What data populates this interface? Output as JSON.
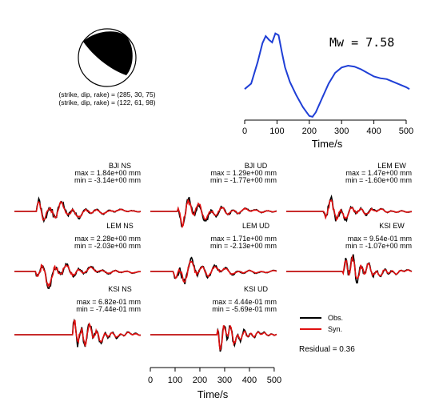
{
  "colors": {
    "obs": "#000000",
    "syn": "#e01010",
    "stf": "#1f3fd6"
  },
  "focal_mechanism": {
    "line1": "(strike, dip, rake) = (285, 30, 75)",
    "line2": "(strike, dip, rake) = (122, 61, 98)"
  },
  "stf": {
    "title": "Mw = 7.58",
    "xlabel": "Time/s",
    "ticks": [
      "0",
      "100",
      "200",
      "300",
      "400",
      "500"
    ]
  },
  "waveform_xlabel": "Time/s",
  "waveform_ticks": [
    "0",
    "100",
    "200",
    "300",
    "400",
    "500"
  ],
  "legend": {
    "obs": "Obs.",
    "syn": "Syn."
  },
  "residual": "Residual = 0.36",
  "chart_data": [
    {
      "type": "line",
      "title": "Mw = 7.58",
      "xlabel": "Time/s",
      "ylabel": "",
      "xlim": [
        0,
        510
      ],
      "series": [
        {
          "x": [
            0,
            20,
            40,
            55,
            65,
            75,
            85,
            95,
            105,
            115,
            125,
            140,
            160,
            180,
            200,
            210,
            220,
            240,
            260,
            280,
            300,
            320,
            340,
            360,
            380,
            400,
            420,
            440,
            460,
            480,
            500,
            510
          ],
          "values": [
            0.32,
            0.38,
            0.62,
            0.83,
            0.91,
            0.87,
            0.84,
            0.94,
            0.92,
            0.73,
            0.56,
            0.4,
            0.25,
            0.12,
            0.02,
            0.01,
            0.06,
            0.22,
            0.38,
            0.5,
            0.56,
            0.58,
            0.57,
            0.54,
            0.5,
            0.46,
            0.44,
            0.43,
            0.4,
            0.37,
            0.34,
            0.32
          ]
        }
      ]
    },
    {
      "type": "line",
      "xlabel": "Time/s",
      "xlim": [
        0,
        510
      ],
      "stations": [
        {
          "name": "BJI NS",
          "max": "max = 1.84e+00 mm",
          "min": "min = -3.14e+00 mm",
          "start": 90,
          "end": 495,
          "amp": 1.0,
          "seed": 1
        },
        {
          "name": "BJI UD",
          "max": "max = 1.29e+00 mm",
          "min": "min = -1.77e+00 mm",
          "start": 110,
          "end": 495,
          "amp": 1.1,
          "seed": 2
        },
        {
          "name": "LEM EW",
          "max": "max = 1.47e+00 mm",
          "min": "min = -1.60e+00 mm",
          "start": 150,
          "end": 495,
          "amp": 0.9,
          "seed": 3
        },
        {
          "name": "LEM NS",
          "max": "max = 2.28e+00 mm",
          "min": "min = -2.03e+00 mm",
          "start": 85,
          "end": 495,
          "amp": 1.0,
          "seed": 4
        },
        {
          "name": "LEM UD",
          "max": "max = 1.71e+00 mm",
          "min": "min = -2.13e+00 mm",
          "start": 95,
          "end": 495,
          "amp": 1.0,
          "seed": 5
        },
        {
          "name": "KSI EW",
          "max": "max = 9.54e-01 mm",
          "min": "min = -1.07e+00 mm",
          "start": 230,
          "end": 495,
          "amp": 1.3,
          "seed": 6
        },
        {
          "name": "KSI NS",
          "max": "max = 6.82e-01 mm",
          "min": "min = -7.44e-01 mm",
          "start": 235,
          "end": 495,
          "amp": 1.3,
          "seed": 7
        },
        {
          "name": "KSI UD",
          "max": "max = 4.44e-01 mm",
          "min": "min = -5.69e-01 mm",
          "start": 270,
          "end": 495,
          "amp": 1.2,
          "seed": 8
        }
      ]
    }
  ]
}
